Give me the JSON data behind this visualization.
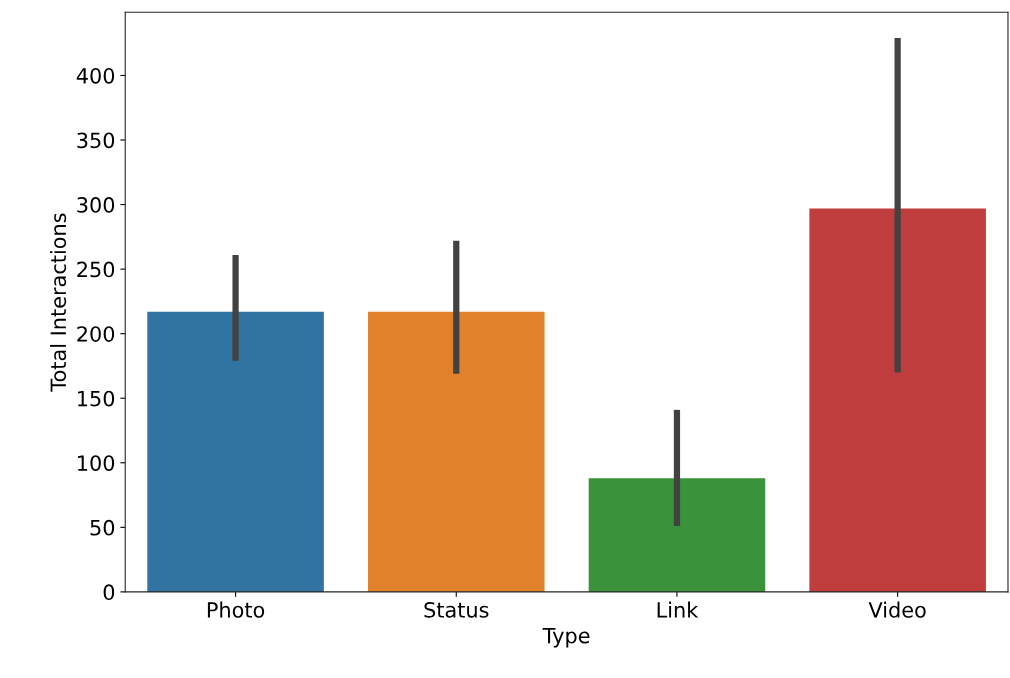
{
  "chart_data": {
    "type": "bar",
    "xlabel": "Type",
    "ylabel": "Total Interactions",
    "categories": [
      "Photo",
      "Status",
      "Link",
      "Video"
    ],
    "values": [
      217,
      217,
      88,
      297
    ],
    "colors": [
      "#3274a1",
      "#e1812c",
      "#3a923a",
      "#c03d3e"
    ],
    "errors": [
      [
        179,
        261
      ],
      [
        169,
        272
      ],
      [
        51,
        141
      ],
      [
        170,
        429
      ]
    ],
    "ylim": [
      0,
      449
    ],
    "yticks": [
      0,
      50,
      100,
      150,
      200,
      250,
      300,
      350,
      400
    ],
    "grid": false
  }
}
